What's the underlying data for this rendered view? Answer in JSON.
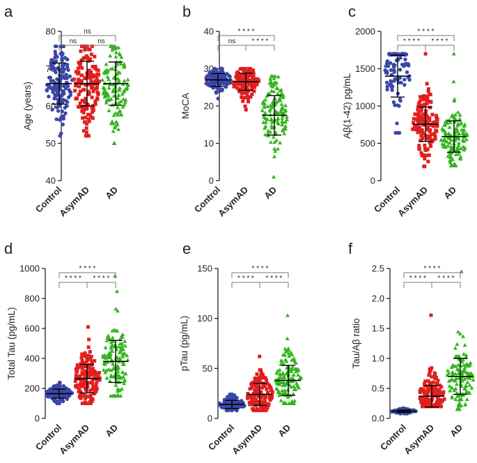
{
  "colors": {
    "control": "#3a47a8",
    "asymad": "#e02020",
    "ad": "#33b51d"
  },
  "chart_data": [
    {
      "type": "scatter",
      "panel": "a",
      "ylabel": "Age (years)",
      "ylim": [
        40,
        80
      ],
      "yticks": [
        40,
        50,
        60,
        70,
        80
      ],
      "categories": [
        "Control",
        "AsymAD",
        "AD"
      ],
      "series": [
        {
          "name": "Control",
          "mean": 66,
          "sd": 5.5,
          "min": 52,
          "max": 76,
          "n": 140
        },
        {
          "name": "AsymAD",
          "mean": 66,
          "sd": 6,
          "min": 52,
          "max": 76,
          "n": 150
        },
        {
          "name": "AD",
          "mean": 66,
          "sd": 5.8,
          "min": 50,
          "max": 76,
          "n": 130
        }
      ],
      "comparisons": [
        {
          "from": 0,
          "to": 1,
          "label": "ns",
          "level": 0
        },
        {
          "from": 1,
          "to": 2,
          "label": "ns",
          "level": 0
        },
        {
          "from": 0,
          "to": 2,
          "label": "ns",
          "level": 1
        }
      ]
    },
    {
      "type": "scatter",
      "panel": "b",
      "ylabel": "MoCA",
      "ylim": [
        0,
        40
      ],
      "yticks": [
        0,
        10,
        20,
        30,
        40
      ],
      "categories": [
        "Control",
        "AsymAD",
        "AD"
      ],
      "series": [
        {
          "name": "Control",
          "mean": 27,
          "sd": 1.7,
          "min": 22,
          "max": 30,
          "n": 140
        },
        {
          "name": "AsymAD",
          "mean": 26.5,
          "sd": 2.3,
          "min": 19,
          "max": 30,
          "n": 150
        },
        {
          "name": "AD",
          "mean": 17.5,
          "sd": 5.3,
          "min": 1,
          "max": 28,
          "n": 130
        }
      ],
      "comparisons": [
        {
          "from": 0,
          "to": 1,
          "label": "ns",
          "level": 0
        },
        {
          "from": 1,
          "to": 2,
          "label": "* * * *",
          "level": 0
        },
        {
          "from": 0,
          "to": 2,
          "label": "* * * *",
          "level": 1
        }
      ]
    },
    {
      "type": "scatter",
      "panel": "c",
      "ylabel": "Aβ(1-42) pg/mL",
      "ylim": [
        0,
        2000
      ],
      "yticks": [
        0,
        500,
        1000,
        1500,
        2000
      ],
      "categories": [
        "Control",
        "AsymAD",
        "AD"
      ],
      "series": [
        {
          "name": "Control",
          "mean": 1400,
          "sd": 280,
          "min": 640,
          "max": 1700,
          "n": 100
        },
        {
          "name": "AsymAD",
          "mean": 755,
          "sd": 230,
          "min": 190,
          "max": 1700,
          "n": 150
        },
        {
          "name": "AD",
          "mean": 590,
          "sd": 210,
          "min": 200,
          "max": 1700,
          "n": 130
        }
      ],
      "comparisons": [
        {
          "from": 0,
          "to": 1,
          "label": "* * * *",
          "level": 0
        },
        {
          "from": 1,
          "to": 2,
          "label": "* * * *",
          "level": 0
        },
        {
          "from": 0,
          "to": 2,
          "label": "* * * *",
          "level": 1
        }
      ]
    },
    {
      "type": "scatter",
      "panel": "d",
      "ylabel": "Total Tau (pg/mL)",
      "ylim": [
        0,
        1000
      ],
      "yticks": [
        0,
        200,
        400,
        600,
        800,
        1000
      ],
      "categories": [
        "Control",
        "AsymAD",
        "AD"
      ],
      "series": [
        {
          "name": "Control",
          "mean": 165,
          "sd": 30,
          "min": 100,
          "max": 240,
          "n": 140
        },
        {
          "name": "AsymAD",
          "mean": 265,
          "sd": 95,
          "min": 100,
          "max": 610,
          "n": 150
        },
        {
          "name": "AD",
          "mean": 380,
          "sd": 140,
          "min": 150,
          "max": 950,
          "n": 130
        }
      ],
      "comparisons": [
        {
          "from": 0,
          "to": 1,
          "label": "* * * *",
          "level": 0
        },
        {
          "from": 1,
          "to": 2,
          "label": "* * * *",
          "level": 0
        },
        {
          "from": 0,
          "to": 2,
          "label": "* * * *",
          "level": 1
        }
      ]
    },
    {
      "type": "scatter",
      "panel": "e",
      "ylabel": "pTau (pg/mL)",
      "ylim": [
        0,
        150
      ],
      "yticks": [
        0,
        50,
        100,
        150
      ],
      "categories": [
        "Control",
        "AsymAD",
        "AD"
      ],
      "series": [
        {
          "name": "Control",
          "mean": 14,
          "sd": 4,
          "min": 8,
          "max": 24,
          "n": 140
        },
        {
          "name": "AsymAD",
          "mean": 24,
          "sd": 11,
          "min": 8,
          "max": 62,
          "n": 150
        },
        {
          "name": "AD",
          "mean": 38,
          "sd": 15,
          "min": 15,
          "max": 103,
          "n": 130
        }
      ],
      "comparisons": [
        {
          "from": 0,
          "to": 1,
          "label": "* * * *",
          "level": 0
        },
        {
          "from": 1,
          "to": 2,
          "label": "* * * *",
          "level": 0
        },
        {
          "from": 0,
          "to": 2,
          "label": "* * * *",
          "level": 1
        }
      ]
    },
    {
      "type": "scatter",
      "panel": "f",
      "ylabel": "Tau/Aβ ratio",
      "ylim": [
        0,
        2.5
      ],
      "yticks": [
        0.0,
        0.5,
        1.0,
        1.5,
        2.0,
        2.5
      ],
      "categories": [
        "Control",
        "AsymAD",
        "AD"
      ],
      "series": [
        {
          "name": "Control",
          "mean": 0.12,
          "sd": 0.02,
          "min": 0.08,
          "max": 0.17,
          "n": 120
        },
        {
          "name": "AsymAD",
          "mean": 0.37,
          "sd": 0.18,
          "min": 0.2,
          "max": 1.72,
          "n": 150
        },
        {
          "name": "AD",
          "mean": 0.7,
          "sd": 0.3,
          "min": 0.15,
          "max": 2.45,
          "n": 130
        }
      ],
      "comparisons": [
        {
          "from": 0,
          "to": 1,
          "label": "* * * *",
          "level": 0
        },
        {
          "from": 1,
          "to": 2,
          "label": "* * * *",
          "level": 0
        },
        {
          "from": 0,
          "to": 2,
          "label": "* * * *",
          "level": 1
        }
      ]
    }
  ]
}
